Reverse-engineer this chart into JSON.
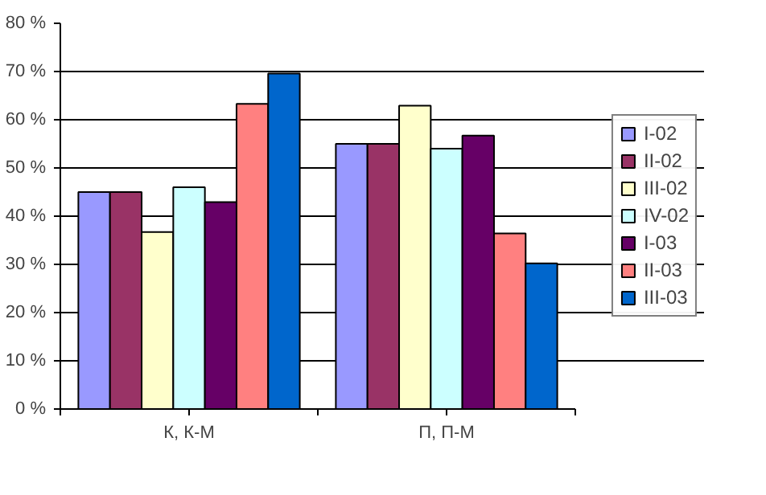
{
  "chart_data": {
    "type": "bar",
    "categories": [
      "К, К-М",
      "П, П-М"
    ],
    "series": [
      {
        "name": "I-02",
        "color": "#9999ff",
        "values": [
          45.0,
          55.0
        ]
      },
      {
        "name": "II-02",
        "color": "#993366",
        "values": [
          45.0,
          55.0
        ]
      },
      {
        "name": "III-02",
        "color": "#ffffcc",
        "values": [
          36.7,
          62.9
        ]
      },
      {
        "name": "IV-02",
        "color": "#ccffff",
        "values": [
          46.0,
          54.0
        ]
      },
      {
        "name": "I-03",
        "color": "#660066",
        "values": [
          42.9,
          56.7
        ]
      },
      {
        "name": "II-03",
        "color": "#ff8080",
        "values": [
          63.3,
          36.4
        ]
      },
      {
        "name": "III-03",
        "color": "#0066cc",
        "values": [
          69.6,
          30.2
        ]
      }
    ],
    "ylim": [
      0,
      80
    ],
    "yticks": [
      {
        "value": 0,
        "label": "0 %"
      },
      {
        "value": 10,
        "label": "10 %"
      },
      {
        "value": 20,
        "label": "20 %"
      },
      {
        "value": 30,
        "label": "30 %"
      },
      {
        "value": 40,
        "label": "40 %"
      },
      {
        "value": 50,
        "label": "50 %"
      },
      {
        "value": 60,
        "label": "60 %"
      },
      {
        "value": 70,
        "label": "70 %"
      },
      {
        "value": 80,
        "label": "80 %"
      }
    ],
    "grid": "y",
    "legend": "right"
  }
}
